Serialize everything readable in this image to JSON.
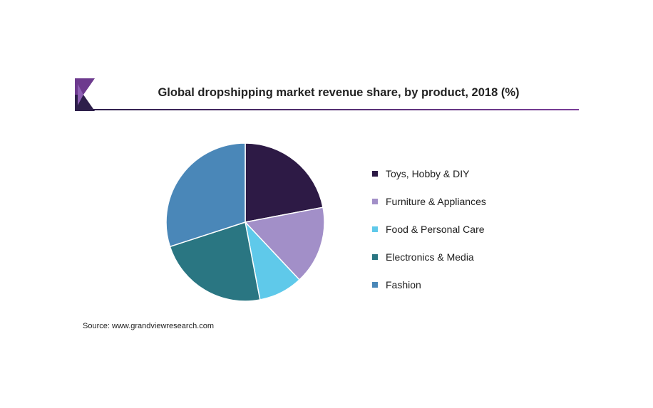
{
  "chart_data": {
    "type": "pie",
    "title": "Global dropshipping market revenue share, by product, 2018 (%)",
    "start_angle_deg": 0,
    "direction": "clockwise",
    "series": [
      {
        "name": "Toys, Hobby & DIY",
        "value": 22,
        "color": "#2d1a45"
      },
      {
        "name": "Furniture & Appliances",
        "value": 16,
        "color": "#a28fc8"
      },
      {
        "name": "Food & Personal Care",
        "value": 9,
        "color": "#5fc9ea"
      },
      {
        "name": "Electronics & Media",
        "value": 23,
        "color": "#2a7682"
      },
      {
        "name": "Fashion",
        "value": 30,
        "color": "#4a87b8"
      }
    ],
    "legend_position": "right"
  },
  "source": "Source: www.grandviewresearch.com",
  "logo_colors": [
    "#6d3a8e",
    "#2d1f4a"
  ]
}
